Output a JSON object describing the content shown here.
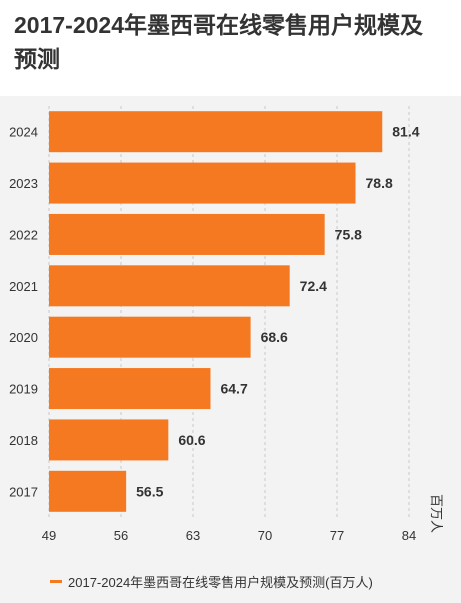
{
  "title": "2017-2024年墨西哥在线零售用户规模及预测",
  "colors": {
    "bar": "#f47920",
    "grid": "#c8c8c8",
    "text": "#333333",
    "background": "#f3f3f3"
  },
  "chart_data": {
    "type": "bar",
    "orientation": "horizontal",
    "categories": [
      "2024",
      "2023",
      "2022",
      "2021",
      "2020",
      "2019",
      "2018",
      "2017"
    ],
    "series": [
      {
        "name": "2017-2024年墨西哥在线零售用户规模及预测(百万人)",
        "values": [
          81.4,
          78.8,
          75.8,
          72.4,
          68.6,
          64.7,
          60.6,
          56.5
        ]
      }
    ],
    "xlim": [
      49,
      84
    ],
    "xticks": [
      49,
      56,
      63,
      70,
      77,
      84
    ],
    "xlabel": "百万人",
    "grid": "vertical",
    "legend": "bottom-left"
  }
}
